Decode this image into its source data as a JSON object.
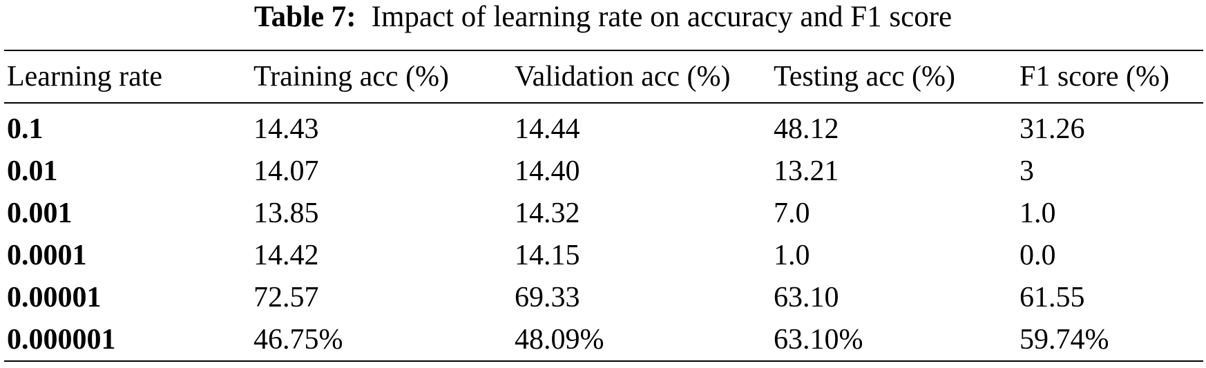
{
  "caption": {
    "label": "Table 7:",
    "text": "Impact of learning rate on accuracy and F1 score"
  },
  "table": {
    "headers": [
      "Learning rate",
      "Training acc (%)",
      "Validation acc (%)",
      "Testing acc (%)",
      "F1 score (%)"
    ],
    "rows": [
      [
        "0.1",
        "14.43",
        "14.44",
        "48.12",
        "31.26"
      ],
      [
        "0.01",
        "14.07",
        "14.40",
        "13.21",
        "3"
      ],
      [
        "0.001",
        "13.85",
        "14.32",
        "7.0",
        "1.0"
      ],
      [
        "0.0001",
        "14.42",
        "14.15",
        "1.0",
        "0.0"
      ],
      [
        "0.00001",
        "72.57",
        "69.33",
        "63.10",
        "61.55"
      ],
      [
        "0.000001",
        "46.75%",
        "48.09%",
        "63.10%",
        "59.74%"
      ]
    ]
  }
}
